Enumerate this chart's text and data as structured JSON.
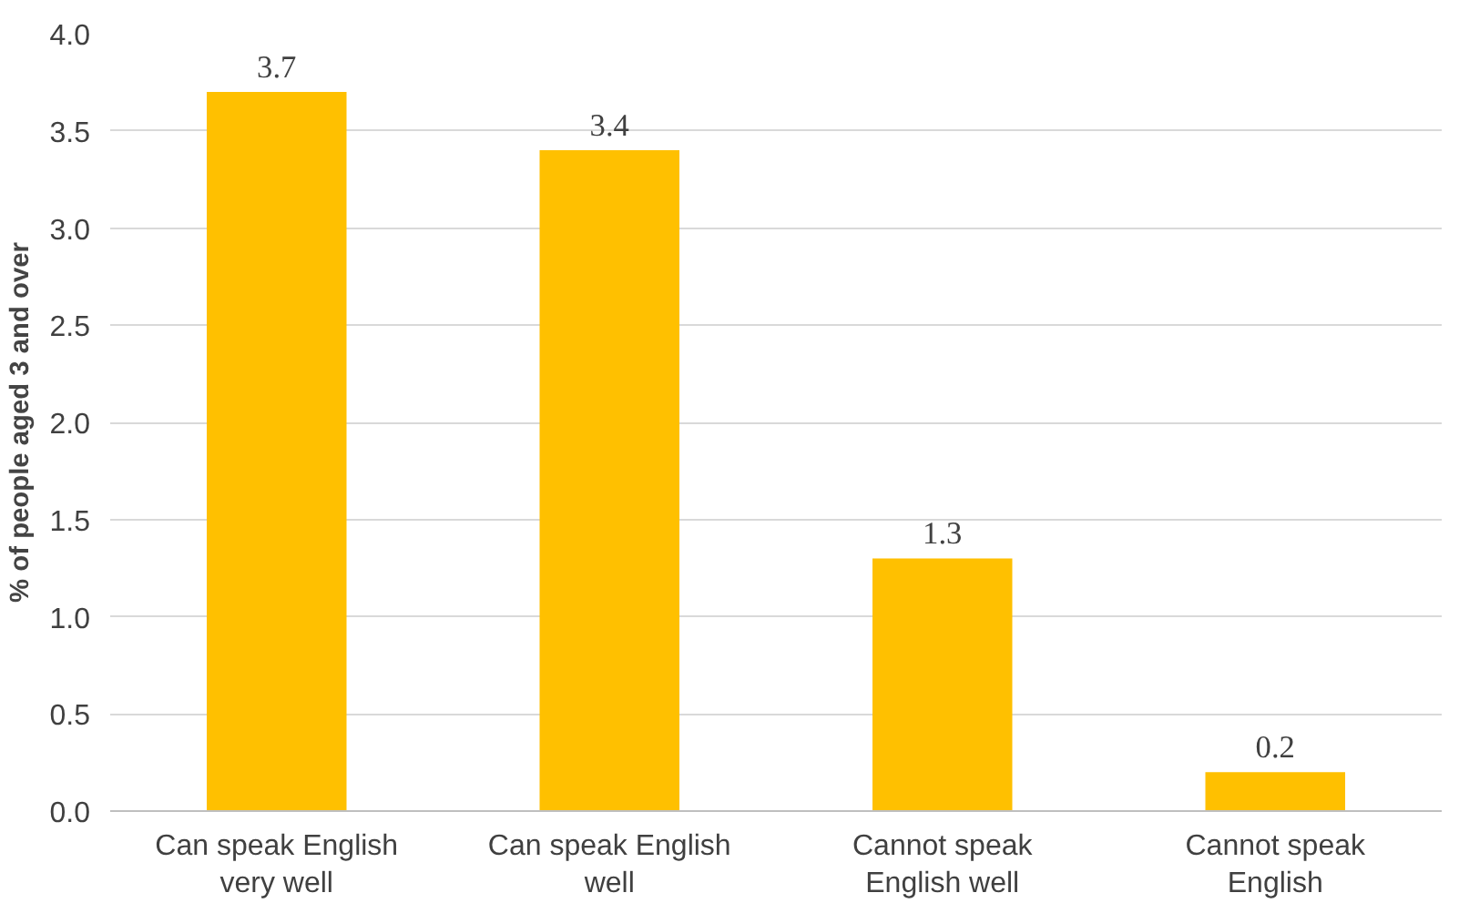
{
  "chart_data": {
    "type": "bar",
    "ylabel": "% of people aged 3 and over",
    "categories": [
      "Can speak English very well",
      "Can speak English well",
      "Cannot speak English well",
      "Cannot speak English"
    ],
    "values": [
      3.7,
      3.4,
      1.3,
      0.2
    ],
    "color": "#ffc000",
    "ylim": [
      0,
      4
    ],
    "yticks": [
      {
        "value": 0,
        "label": "0.0"
      },
      {
        "value": 0.5,
        "label": "0.5"
      },
      {
        "value": 1,
        "label": "1.0"
      },
      {
        "value": 1.5,
        "label": "1.5"
      },
      {
        "value": 2,
        "label": "2.0"
      },
      {
        "value": 2.5,
        "label": "2.5"
      },
      {
        "value": 3,
        "label": "3.0"
      },
      {
        "value": 3.5,
        "label": "3.5"
      },
      {
        "value": 4,
        "label": "4.0"
      }
    ],
    "grid": "y",
    "data_labels": true
  }
}
